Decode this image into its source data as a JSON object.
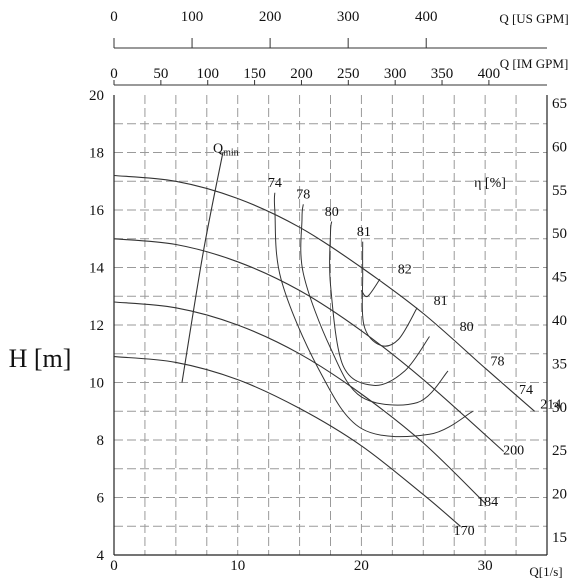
{
  "chart_data": {
    "type": "line",
    "title": "",
    "x_axis": {
      "label": "Q[1/s]",
      "range": [
        0,
        35
      ],
      "major_ticks": [
        0,
        10,
        20,
        30
      ]
    },
    "y_axis": {
      "label": "H [m]",
      "range": [
        4,
        20
      ],
      "major_ticks": [
        4,
        6,
        8,
        10,
        12,
        14,
        16,
        18,
        20
      ],
      "grid_step": 1
    },
    "secondary_y_axis": {
      "label": "η [%]",
      "ticks": [
        "65",
        "60",
        "55",
        "50",
        "45",
        "40",
        "35",
        "30",
        "25",
        "20",
        "15"
      ]
    },
    "top_axes": [
      {
        "label": "Q [US GPM]",
        "ticks": [
          0,
          100,
          200,
          300,
          400
        ],
        "ticks_text": [
          "0",
          "100",
          "200",
          "300",
          "400"
        ],
        "gpm_per_unit": 15.85
      },
      {
        "label": "Q [IM GPM]",
        "ticks": [
          0,
          50,
          100,
          150,
          200,
          250,
          300,
          350,
          400
        ],
        "ticks_text": [
          "0",
          "50",
          "100",
          "150",
          "200",
          "250",
          "300",
          "350",
          "400"
        ],
        "gpm_per_unit": 13.2
      }
    ],
    "grid": true,
    "series": [
      {
        "name": "214",
        "x": [
          0,
          5,
          10,
          15,
          20,
          25,
          30,
          34
        ],
        "y": [
          17.2,
          17.0,
          16.4,
          15.4,
          14.0,
          12.4,
          10.5,
          9.0
        ]
      },
      {
        "name": "200",
        "x": [
          0,
          5,
          10,
          15,
          20,
          25,
          31.5
        ],
        "y": [
          15.0,
          14.8,
          14.2,
          13.2,
          11.8,
          10.1,
          7.6
        ]
      },
      {
        "name": "184",
        "x": [
          0,
          5,
          10,
          15,
          20,
          25,
          30
        ],
        "y": [
          12.8,
          12.6,
          12.0,
          11.0,
          9.6,
          7.9,
          5.8
        ]
      },
      {
        "name": "170",
        "x": [
          0,
          5,
          10,
          15,
          20,
          25,
          28
        ],
        "y": [
          10.9,
          10.7,
          10.1,
          9.1,
          7.8,
          6.1,
          5.0
        ]
      }
    ],
    "efficiency_curves": [
      {
        "label": "74",
        "x": [
          29,
          25.5,
          20,
          16.5,
          13.5,
          13.0,
          13.0
        ],
        "y": [
          9.0,
          8.2,
          8.4,
          10.5,
          13.6,
          16.0,
          16.6
        ]
      },
      {
        "label": "78",
        "x": [
          27,
          24.5,
          20,
          17.5,
          15.3,
          15.2,
          15.3
        ],
        "y": [
          10.4,
          9.3,
          9.5,
          11.2,
          13.8,
          15.7,
          16.2
        ]
      },
      {
        "label": "80",
        "x": [
          25.5,
          23.5,
          21,
          18.5,
          17.5,
          17.5,
          17.6
        ],
        "y": [
          11.6,
          10.4,
          9.9,
          10.6,
          13.4,
          15.2,
          15.6
        ]
      },
      {
        "label": "81",
        "x": [
          24.5,
          23.0,
          21.5,
          20.2,
          20.1,
          20.1
        ],
        "y": [
          12.6,
          11.5,
          11.3,
          12.0,
          13.8,
          14.9
        ]
      },
      {
        "label": "82",
        "x": [
          21.5,
          20.5,
          20.0
        ],
        "y": [
          13.6,
          13.0,
          13.2
        ]
      }
    ],
    "efficiency_labels": [
      {
        "text": "74",
        "x": 13.0,
        "y": 16.8
      },
      {
        "text": "78",
        "x": 15.3,
        "y": 16.4
      },
      {
        "text": "80",
        "x": 17.6,
        "y": 15.8
      },
      {
        "text": "81",
        "x": 20.2,
        "y": 15.1
      },
      {
        "text": "82",
        "x": 23.5,
        "y": 13.8
      },
      {
        "text": "81",
        "x": 26.4,
        "y": 12.7
      },
      {
        "text": "80",
        "x": 28.5,
        "y": 11.8
      },
      {
        "text": "78",
        "x": 31.0,
        "y": 10.6
      },
      {
        "text": "74",
        "x": 33.3,
        "y": 9.6
      }
    ],
    "series_labels": [
      {
        "text": "214",
        "x": 35.3,
        "y": 9.1
      },
      {
        "text": "200",
        "x": 32.3,
        "y": 7.5
      },
      {
        "text": "184",
        "x": 30.2,
        "y": 5.7
      },
      {
        "text": "170",
        "x": 28.3,
        "y": 4.7
      }
    ],
    "qmin": {
      "label": "Q",
      "subscript": "min",
      "x": [
        5.5,
        7.2,
        8.8
      ],
      "y": [
        10.0,
        14.5,
        18.0
      ]
    },
    "eta_label": "η [%]"
  }
}
